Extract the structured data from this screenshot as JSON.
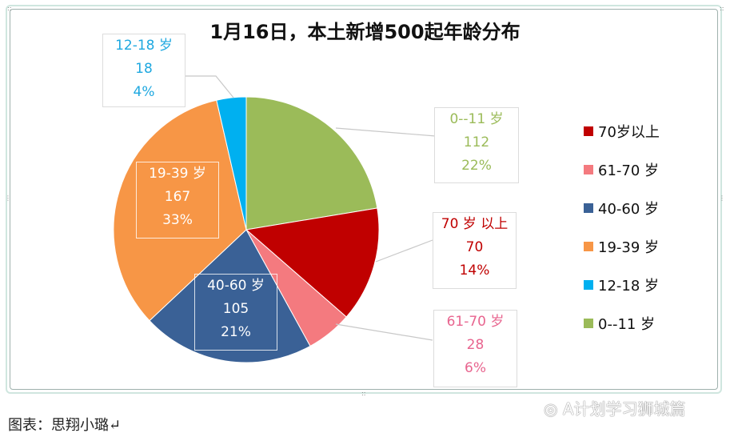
{
  "chart_data": {
    "type": "pie",
    "title": "1月16日，本土新增500起年龄分布",
    "categories": [
      "0--11 岁",
      "70岁以上",
      "61-70 岁",
      "40-60 岁",
      "19-39 岁",
      "12-18 岁"
    ],
    "values": [
      112,
      70,
      28,
      105,
      167,
      18
    ],
    "percentages": [
      "22%",
      "14%",
      "6%",
      "21%",
      "33%",
      "4%"
    ],
    "colors": [
      "#9bbb59",
      "#c00000",
      "#f47a7f",
      "#3a6196",
      "#f79646",
      "#00b0f0"
    ],
    "data_labels": [
      {
        "name": "0--11 岁",
        "value": "112",
        "pct": "22%",
        "color": "#9bbb59"
      },
      {
        "name": "70 岁 以上",
        "value": "70",
        "pct": "14%",
        "color": "#c00000"
      },
      {
        "name": "61-70 岁",
        "value": "28",
        "pct": "6%",
        "color": "#e8658f"
      },
      {
        "name": "40-60 岁",
        "value": "105",
        "pct": "21%",
        "color": "#ffffff"
      },
      {
        "name": "19-39 岁",
        "value": "167",
        "pct": "33%",
        "color": "#ffffff"
      },
      {
        "name": "12-18 岁",
        "value": "18",
        "pct": "4%",
        "color": "#1ea8e0"
      }
    ],
    "legend": {
      "position": "right",
      "entries": [
        {
          "label": "70岁以上",
          "color": "#c00000"
        },
        {
          "label": "61-70 岁",
          "color": "#f47a7f"
        },
        {
          "label": "40-60 岁",
          "color": "#3a6196"
        },
        {
          "label": "19-39 岁",
          "color": "#f79646"
        },
        {
          "label": "12-18 岁",
          "color": "#00b0f0"
        },
        {
          "label": "0--11 岁",
          "color": "#9bbb59"
        }
      ]
    }
  },
  "footer": {
    "caption": "图表：思翔小璐↵",
    "watermark": "A计划学习狮城篇"
  }
}
